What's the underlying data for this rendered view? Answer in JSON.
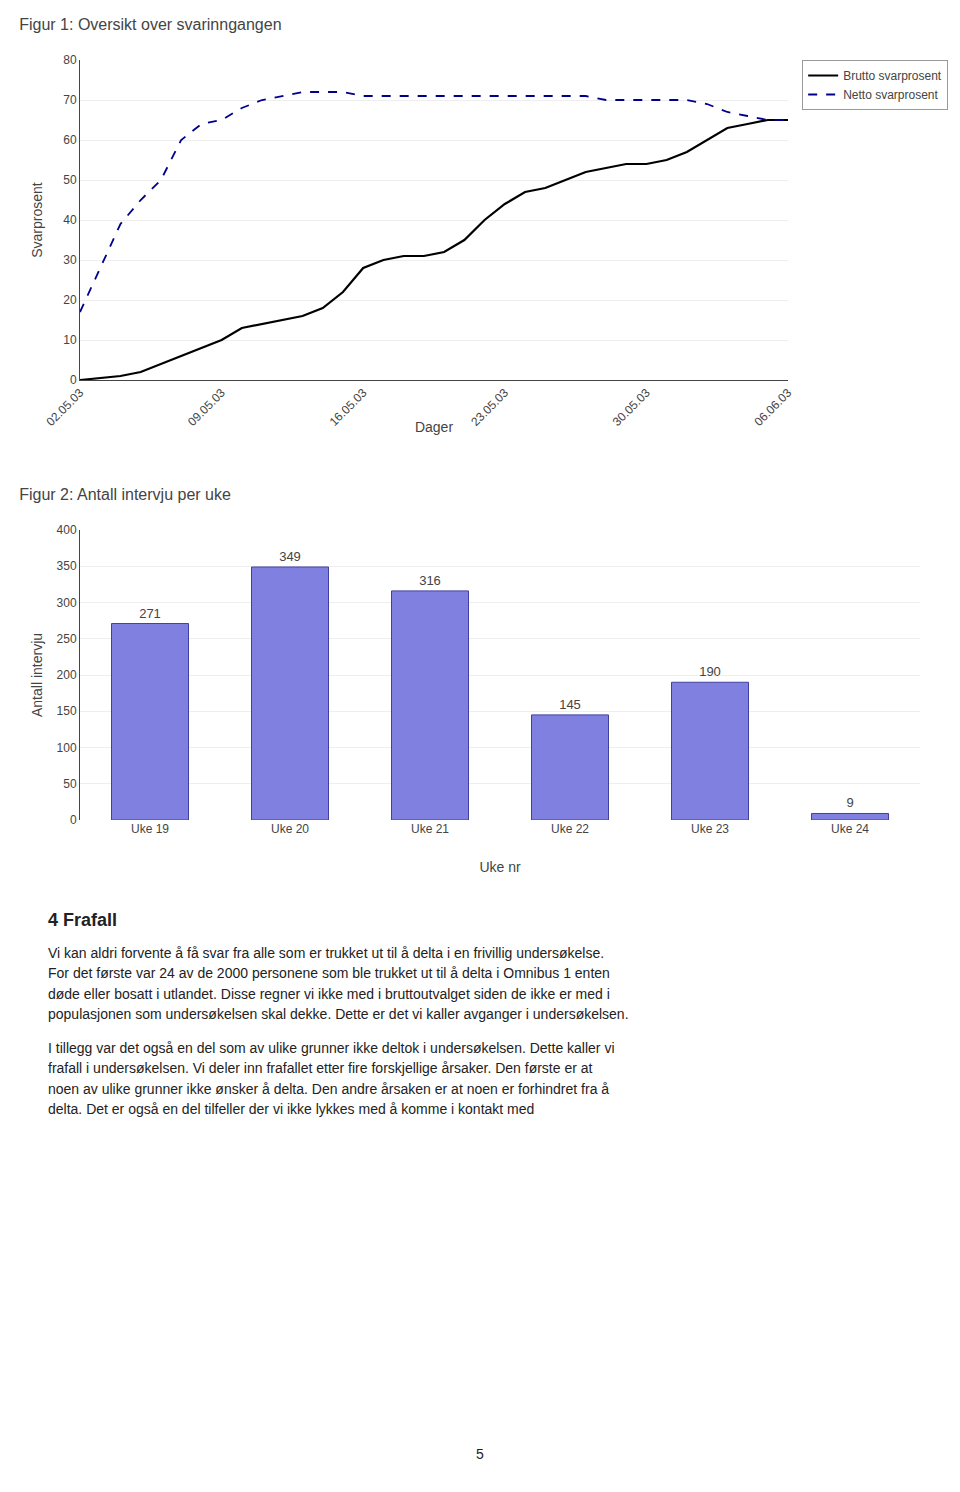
{
  "chart_data": [
    {
      "type": "line",
      "title": "Figur 1: Oversikt over svarinngangen",
      "x_label": "Dager",
      "y_label": "Svarprosent",
      "x": [
        0,
        1,
        2,
        3,
        4,
        5,
        6,
        7,
        8,
        9,
        10,
        11,
        12,
        13,
        14,
        15,
        16,
        17,
        18,
        19,
        20,
        21,
        22,
        23,
        24,
        25,
        26,
        27,
        28,
        29,
        30,
        31,
        32,
        33,
        34,
        35
      ],
      "series": [
        {
          "name": "Brutto svarprosent",
          "color": "#000000",
          "line_style": "solid",
          "values": [
            0,
            0.5,
            1,
            2,
            4,
            6,
            8,
            10,
            13,
            14,
            15,
            16,
            18,
            22,
            28,
            30,
            31,
            31,
            32,
            35,
            40,
            44,
            47,
            48,
            50,
            52,
            53,
            54,
            54,
            55,
            57,
            60,
            63,
            64,
            65,
            65
          ]
        },
        {
          "name": "Netto svarprosent",
          "color": "#00008B",
          "line_style": "dashed",
          "values": [
            17,
            28,
            39,
            45,
            50,
            60,
            64,
            65,
            68,
            70,
            71,
            72,
            72,
            72,
            71,
            71,
            71,
            71,
            71,
            71,
            71,
            71,
            71,
            71,
            71,
            71,
            70,
            70,
            70,
            70,
            70,
            69,
            67,
            66,
            65,
            65
          ]
        }
      ],
      "xlim": [
        0,
        35
      ],
      "xticks": [
        {
          "value": 0,
          "label": "02.05.03"
        },
        {
          "value": 7,
          "label": "09.05.03"
        },
        {
          "value": 14,
          "label": "16.05.03"
        },
        {
          "value": 21,
          "label": "23.05.03"
        },
        {
          "value": 28,
          "label": "30.05.03"
        },
        {
          "value": 35,
          "label": "06.06.03"
        }
      ],
      "ylim": [
        0,
        80
      ],
      "yticks": [
        0,
        10,
        20,
        30,
        40,
        50,
        60,
        70,
        80
      ],
      "grid": true,
      "legend": "upper right"
    },
    {
      "type": "bar",
      "title": "Figur 2: Antall intervju per uke",
      "x_label": "Uke nr",
      "y_label": "Antall intervju",
      "categories": [
        "Uke 19",
        "Uke 20",
        "Uke 21",
        "Uke 22",
        "Uke 23",
        "Uke 24"
      ],
      "values": [
        271,
        349,
        316,
        145,
        190,
        9
      ],
      "color": "#8080e0",
      "ylim": [
        0,
        400
      ],
      "yticks": [
        0,
        50,
        100,
        150,
        200,
        250,
        300,
        350,
        400
      ],
      "grid": true,
      "data_labels": true
    }
  ],
  "section_title": "4   Frafall",
  "paragraphs": [
    "Vi kan aldri forvente å få svar fra alle som er trukket ut til å delta i en frivillig undersøkelse.\nFor det første var 24 av de 2000 personene som ble trukket ut til å delta i Omnibus 1 enten\ndøde eller bosatt i utlandet. Disse regner vi ikke med i bruttoutvalget siden de ikke er med i\npopulasjonen som undersøkelsen skal dekke. Dette er det vi kaller avganger i undersøkelsen.",
    "I tillegg var det også en del som av ulike grunner ikke deltok i undersøkelsen. Dette kaller vi\nfrafall i undersøkelsen. Vi deler inn frafallet etter fire forskjellige årsaker. Den første er at\nnoen av ulike grunner ikke ønsker å delta. Den andre årsaken er at noen er forhindret fra å\ndelta. Det er også en del tilfeller der vi ikke lykkes med å komme i kontakt med"
  ],
  "page_number": "5"
}
